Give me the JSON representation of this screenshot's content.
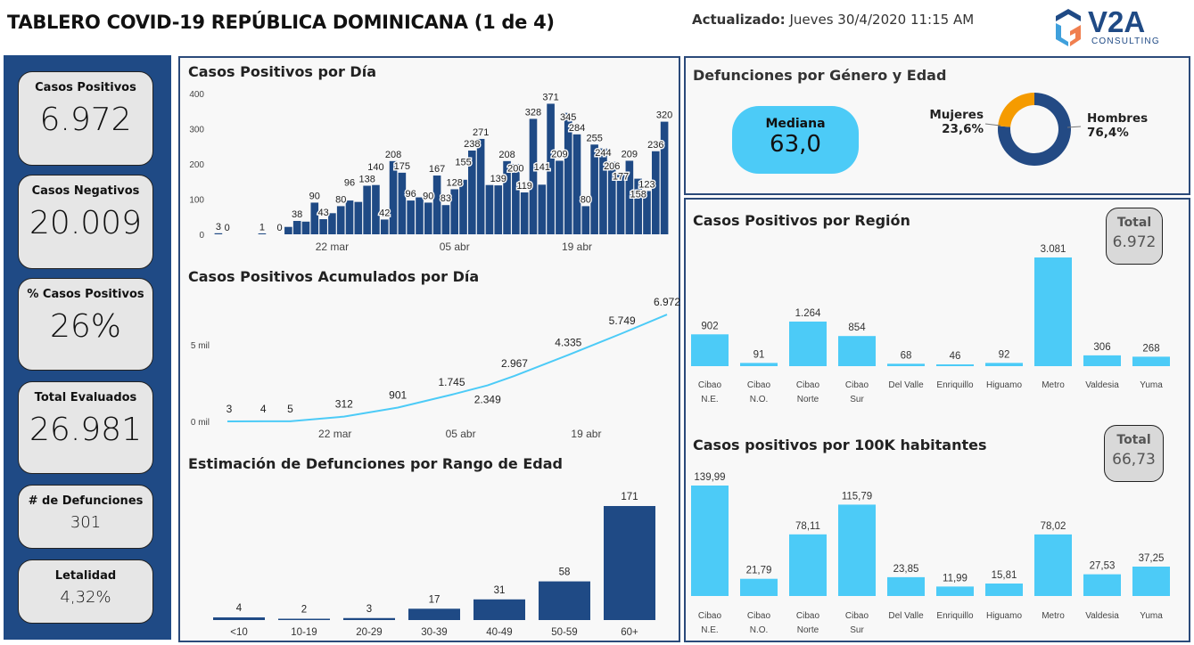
{
  "header": {
    "title": "TABLERO COVID-19 REPÚBLICA DOMINICANA (1 de 4)",
    "updated_label": "Actualizado:",
    "updated_value": "Jueves 30/4/2020  11:15 AM",
    "logo_text": "V2A",
    "logo_sub": "CONSULTING"
  },
  "kpis": [
    {
      "label": "Casos Positivos",
      "value": "6.972"
    },
    {
      "label": "Casos Negativos",
      "value": "20.009"
    },
    {
      "label": "% Casos Positivos",
      "value": "26%"
    },
    {
      "label": "Total Evaluados",
      "value": "26.981"
    },
    {
      "label": "# de Defunciones",
      "value": "301"
    },
    {
      "label": "Letalidad",
      "value": "4,32%"
    }
  ],
  "deaths_gender": {
    "title": "Defunciones por Género y Edad",
    "median_label": "Mediana",
    "median_value": "63,0",
    "slices": [
      {
        "name": "Mujeres",
        "pct_label": "23,6%",
        "value": 23.6,
        "color": "#f59b00"
      },
      {
        "name": "Hombres",
        "pct_label": "76,4%",
        "value": 76.4,
        "color": "#234a84"
      }
    ]
  },
  "colors": {
    "dark_blue": "#1f4a85",
    "light_blue": "#4ccbf7",
    "orange": "#f59b00"
  },
  "chart_data": [
    {
      "id": "daily",
      "type": "bar",
      "title": "Casos Positivos por Día",
      "ylim": [
        0,
        400
      ],
      "yticks": [
        "0",
        "100",
        "200",
        "300",
        "400"
      ],
      "xticks": [
        {
          "date": "22 mar",
          "label": "22 mar"
        },
        {
          "date": "05 abr",
          "label": "05 abr"
        },
        {
          "date": "19 abr",
          "label": "19 abr"
        }
      ],
      "x": [
        "09 mar",
        "10 mar",
        "11 mar",
        "12 mar",
        "13 mar",
        "14 mar",
        "15 mar",
        "16 mar",
        "17 mar",
        "18 mar",
        "19 mar",
        "20 mar",
        "21 mar",
        "22 mar",
        "23 mar",
        "24 mar",
        "25 mar",
        "26 mar",
        "27 mar",
        "28 mar",
        "29 mar",
        "30 mar",
        "31 mar",
        "01 abr",
        "02 abr",
        "03 abr",
        "04 abr",
        "05 abr",
        "06 abr",
        "07 abr",
        "08 abr",
        "09 abr",
        "10 abr",
        "11 abr",
        "12 abr",
        "13 abr",
        "14 abr",
        "15 abr",
        "16 abr",
        "17 abr",
        "18 abr",
        "19 abr",
        "20 abr",
        "21 abr",
        "22 abr",
        "23 abr",
        "24 abr",
        "25 abr",
        "26 abr",
        "27 abr",
        "28 abr",
        "29 abr"
      ],
      "values": [
        3,
        0,
        0,
        0,
        0,
        1,
        0,
        0,
        21,
        38,
        36,
        90,
        43,
        60,
        80,
        96,
        92,
        138,
        140,
        42,
        208,
        175,
        96,
        105,
        90,
        167,
        83,
        128,
        155,
        238,
        271,
        140,
        139,
        208,
        200,
        119,
        328,
        141,
        371,
        209,
        345,
        284,
        80,
        255,
        244,
        206,
        177,
        209,
        158,
        123,
        236,
        320
      ],
      "labels": [
        "3",
        "0",
        null,
        null,
        null,
        "1",
        null,
        "0",
        null,
        "38",
        null,
        "90",
        "43",
        null,
        "80",
        "96",
        null,
        "138",
        "140",
        "42",
        "208",
        "175",
        "96",
        null,
        "90",
        "167",
        "83",
        "128",
        "155",
        "238",
        "271",
        null,
        "139",
        "208",
        "200",
        "119",
        "328",
        "141",
        "371",
        "209",
        "345",
        "284",
        "80",
        "255",
        "244",
        "206",
        "177",
        "209",
        "158",
        "123",
        "236",
        "320"
      ]
    },
    {
      "id": "cumulative",
      "type": "line",
      "title": "Casos Positivos Acumulados por Día",
      "ylim": [
        0,
        8000
      ],
      "yticks": [
        {
          "v": 0,
          "label": "0 mil"
        },
        {
          "v": 5000,
          "label": "5 mil"
        }
      ],
      "xticks": [
        "22 mar",
        "05 abr",
        "19 abr"
      ],
      "points": [
        {
          "x": "10 mar",
          "y": 3,
          "label": "3"
        },
        {
          "x": "14 mar",
          "y": 4,
          "label": "4"
        },
        {
          "x": "17 mar",
          "y": 5,
          "label": "5"
        },
        {
          "x": "23 mar",
          "y": 312,
          "label": "312"
        },
        {
          "x": "29 mar",
          "y": 901,
          "label": "901"
        },
        {
          "x": "04 abr",
          "y": 1745,
          "label": "1.745"
        },
        {
          "x": "08 abr",
          "y": 2349,
          "label": "2.349"
        },
        {
          "x": "11 abr",
          "y": 2967,
          "label": "2.967"
        },
        {
          "x": "17 abr",
          "y": 4335,
          "label": "4.335"
        },
        {
          "x": "23 abr",
          "y": 5749,
          "label": "5.749"
        },
        {
          "x": "28 abr",
          "y": 6972,
          "label": "6.972"
        }
      ]
    },
    {
      "id": "age",
      "type": "bar",
      "title": "Estimación de Defunciones por Rango de Edad",
      "categories": [
        "<10",
        "10-19",
        "20-29",
        "30-39",
        "40-49",
        "50-59",
        "60+"
      ],
      "values": [
        4,
        2,
        3,
        17,
        31,
        58,
        171
      ],
      "labels": [
        "4",
        "2",
        "3",
        "17",
        "31",
        "58",
        "171"
      ]
    },
    {
      "id": "region",
      "type": "bar",
      "title": "Casos Positivos por Región",
      "total_label": "Total",
      "total_value": "6.972",
      "categories": [
        [
          "Cibao",
          "N.E."
        ],
        [
          "Cibao",
          "N.O."
        ],
        [
          "Cibao",
          "Norte"
        ],
        [
          "Cibao",
          "Sur"
        ],
        [
          "Del Valle"
        ],
        [
          "Enriquillo"
        ],
        [
          "Higuamo"
        ],
        [
          "Metro"
        ],
        [
          "Valdesia"
        ],
        [
          "Yuma"
        ]
      ],
      "values": [
        902,
        91,
        1264,
        854,
        68,
        46,
        92,
        3081,
        306,
        268
      ],
      "labels": [
        "902",
        "91",
        "1.264",
        "854",
        "68",
        "46",
        "92",
        "3.081",
        "306",
        "268"
      ]
    },
    {
      "id": "per100k",
      "type": "bar",
      "title": "Casos positivos por 100K habitantes",
      "total_label": "Total",
      "total_value": "66,73",
      "categories": [
        [
          "Cibao",
          "N.E."
        ],
        [
          "Cibao",
          "N.O."
        ],
        [
          "Cibao",
          "Norte"
        ],
        [
          "Cibao",
          "Sur"
        ],
        [
          "Del Valle"
        ],
        [
          "Enriquillo"
        ],
        [
          "Higuamo"
        ],
        [
          "Metro"
        ],
        [
          "Valdesia"
        ],
        [
          "Yuma"
        ]
      ],
      "values": [
        139.99,
        21.79,
        78.11,
        115.79,
        23.85,
        11.99,
        15.81,
        78.02,
        27.53,
        37.25
      ],
      "labels": [
        "139,99",
        "21,79",
        "78,11",
        "115,79",
        "23,85",
        "11,99",
        "15,81",
        "78,02",
        "27,53",
        "37,25"
      ]
    }
  ]
}
